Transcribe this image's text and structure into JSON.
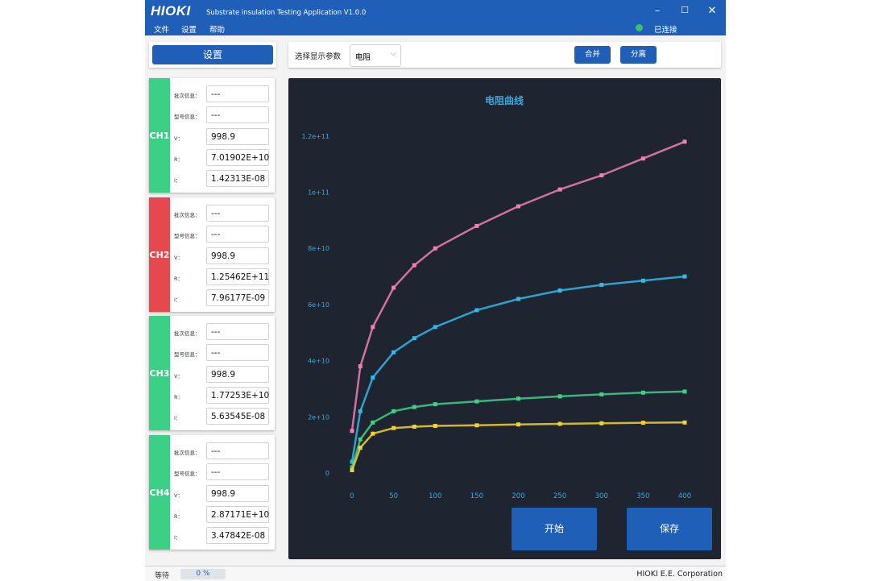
{
  "window": {
    "logo": "HIOKI",
    "title": "Substrate insulation Testing Application V1.0.0",
    "menu": [
      "文件",
      "设置",
      "帮助"
    ],
    "minimize": "–",
    "maximize": "☐",
    "close": "✕",
    "status": "已连接",
    "status_color": "#37c26b"
  },
  "settings_button": "设置",
  "toolbar": {
    "param_label": "选择显示参数",
    "param_value": "电阻",
    "merge_label": "合并",
    "split_label": "分离"
  },
  "channel_labels": {
    "batch": "批次信息：",
    "model": "型号信息：",
    "v": "V：",
    "r": "R：",
    "i": "I："
  },
  "channels": [
    {
      "name": "CH1",
      "color": "#3ccf86",
      "batch": "---",
      "model": "---",
      "v": "998.9",
      "r": "7.01902E+10",
      "i": "1.42313E-08"
    },
    {
      "name": "CH2",
      "color": "#e5484d",
      "batch": "---",
      "model": "---",
      "v": "998.9",
      "r": "1.25462E+11",
      "i": "7.96177E-09"
    },
    {
      "name": "CH3",
      "color": "#3ccf86",
      "batch": "---",
      "model": "---",
      "v": "998.9",
      "r": "1.77253E+10",
      "i": "5.63545E-08"
    },
    {
      "name": "CH4",
      "color": "#3ccf86",
      "batch": "---",
      "model": "---",
      "v": "998.9",
      "r": "2.87171E+10",
      "i": "3.47842E-08"
    }
  ],
  "actions": {
    "start": "开始",
    "save": "保存"
  },
  "footer": {
    "status": "等待",
    "progress": "0 %",
    "company": "HIOKI E.E. Corporation"
  },
  "chart_data": {
    "type": "scatter",
    "title": "电阻曲线",
    "xlim": [
      0,
      400
    ],
    "ylim": [
      0,
      130000000000
    ],
    "x_ticks": [
      0,
      50,
      100,
      150,
      200,
      250,
      300,
      350,
      400
    ],
    "y_ticks": [
      0,
      20000000000,
      40000000000,
      60000000000,
      80000000000,
      100000000000,
      120000000000
    ],
    "y_tick_labels": [
      "0",
      "2e+10",
      "4e+10",
      "6e+10",
      "8e+10",
      "1e+11",
      "1.2e+11"
    ],
    "series": [
      {
        "color": "#f07fb4",
        "x": [
          0,
          10,
          25,
          50,
          75,
          100,
          150,
          200,
          250,
          300,
          350,
          400
        ],
        "y": [
          15000000000,
          38000000000,
          52000000000,
          66000000000,
          74000000000,
          80000000000,
          88000000000,
          95000000000,
          101000000000,
          106000000000,
          112000000000,
          118000000000
        ]
      },
      {
        "color": "#33b8e8",
        "x": [
          0,
          10,
          25,
          50,
          75,
          100,
          150,
          200,
          250,
          300,
          350,
          400
        ],
        "y": [
          4000000000,
          22000000000,
          34000000000,
          43000000000,
          48000000000,
          52000000000,
          58000000000,
          62000000000,
          65000000000,
          67000000000,
          68500000000,
          70000000000
        ]
      },
      {
        "color": "#3fd08a",
        "x": [
          0,
          10,
          25,
          50,
          75,
          100,
          150,
          200,
          250,
          300,
          350,
          400
        ],
        "y": [
          2000000000,
          12000000000,
          18000000000,
          22000000000,
          23500000000,
          24500000000,
          25500000000,
          26500000000,
          27300000000,
          28000000000,
          28600000000,
          29000000000
        ]
      },
      {
        "color": "#f2d22e",
        "x": [
          0,
          10,
          25,
          50,
          75,
          100,
          150,
          200,
          250,
          300,
          350,
          400
        ],
        "y": [
          1000000000,
          9000000000,
          14000000000,
          16000000000,
          16500000000,
          16800000000,
          17000000000,
          17300000000,
          17500000000,
          17700000000,
          17900000000,
          18000000000
        ]
      }
    ]
  }
}
